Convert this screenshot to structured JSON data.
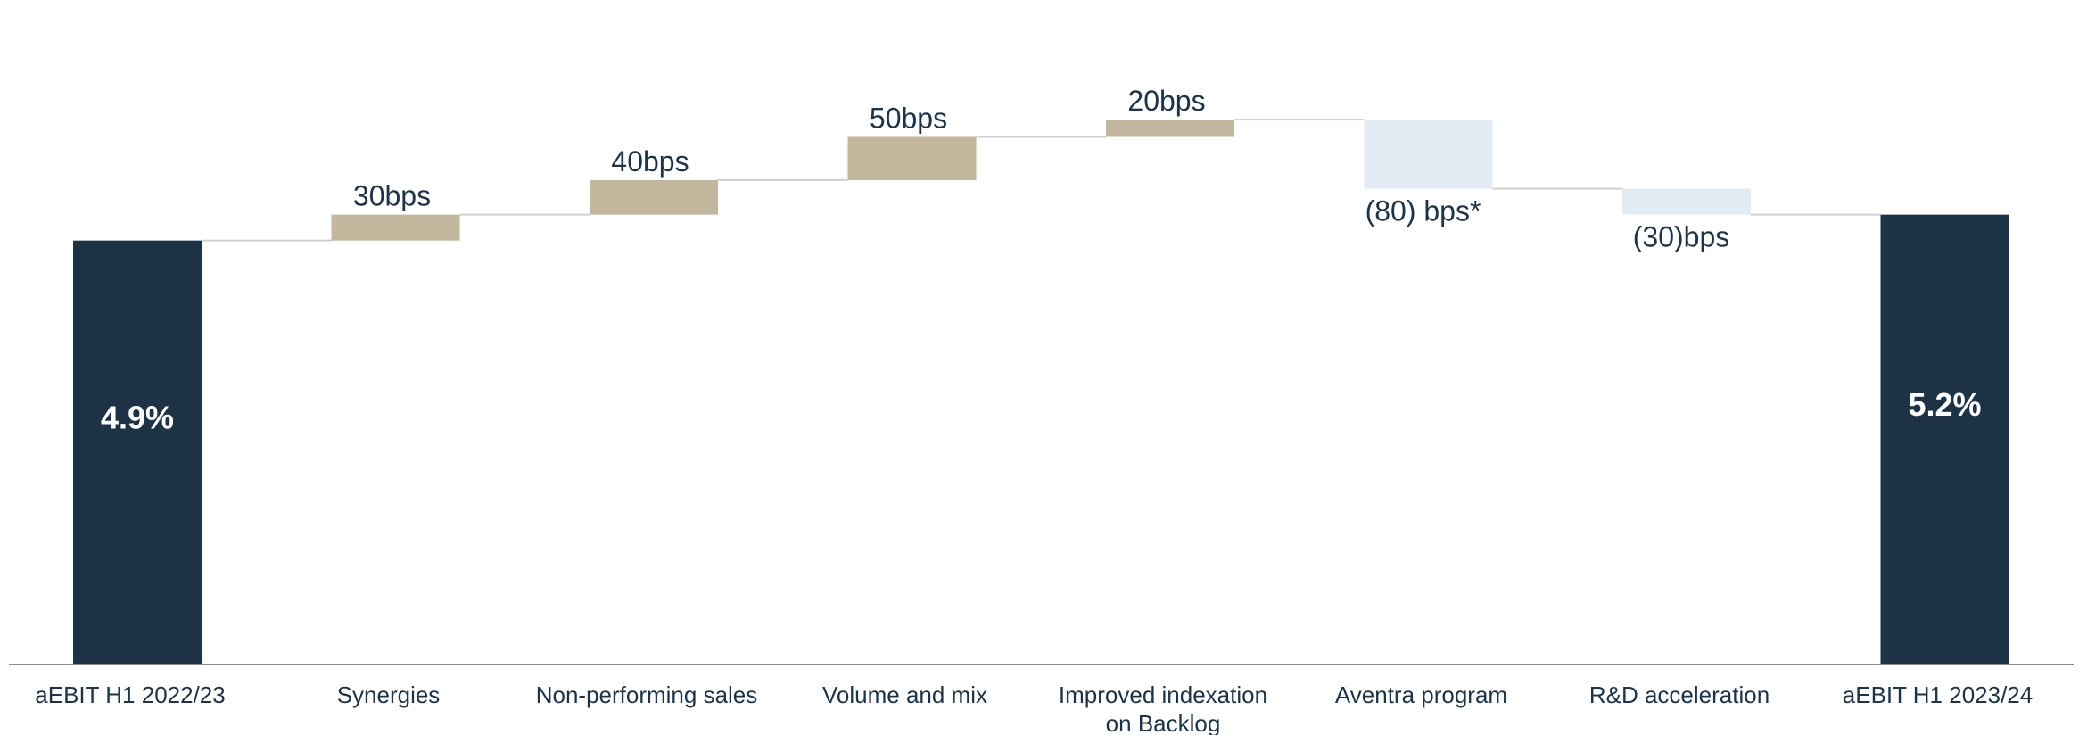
{
  "chart_data": {
    "type": "bar",
    "subtype": "waterfall",
    "unit": "bps",
    "start_value_pct": 4.9,
    "categories": [
      "aEBIT H1 2022/23",
      "Synergies",
      "Non-performing sales",
      "Volume and mix",
      "Improved indexation on Backlog",
      "Aventra program",
      "R&D acceleration",
      "aEBIT H1 2023/24"
    ],
    "category_lines": [
      [
        "aEBIT H1 2022/23"
      ],
      [
        "Synergies"
      ],
      [
        "Non-performing sales"
      ],
      [
        "Volume and mix"
      ],
      [
        "Improved indexation",
        "on Backlog"
      ],
      [
        "Aventra program"
      ],
      [
        "R&D acceleration"
      ],
      [
        "aEBIT H1 2023/24"
      ]
    ],
    "kinds": [
      "total",
      "increase",
      "increase",
      "increase",
      "increase",
      "decrease",
      "decrease",
      "total"
    ],
    "values": [
      4.9,
      30,
      40,
      50,
      20,
      -80,
      -30,
      5.2
    ],
    "labels": [
      "4.9%",
      "30bps",
      "40bps",
      "50bps",
      "20bps",
      "(80) bps*",
      "(30)bps",
      "5.2%"
    ],
    "colors": {
      "total": "#1e3246",
      "increase": "#c3b79d",
      "decrease": "#e2eaf4",
      "connector": "#cfcfcf",
      "axis": "#8a8a8a"
    },
    "grid": false,
    "legend": "none"
  }
}
